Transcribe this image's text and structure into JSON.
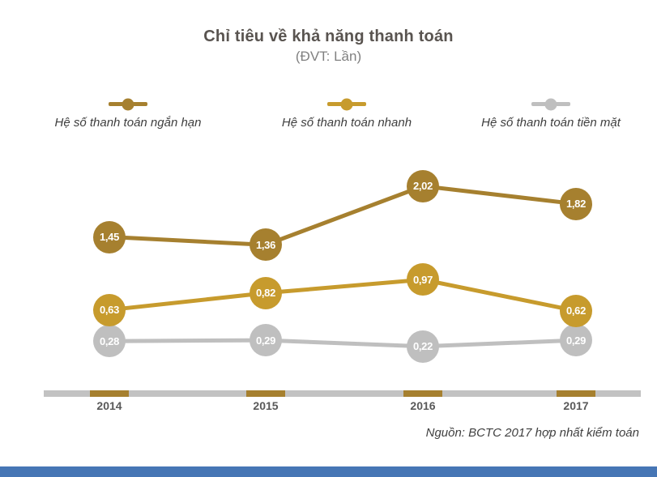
{
  "title": "Chỉ tiêu về khả năng thanh toán",
  "subtitle": "(ĐVT: Lần)",
  "source_note": "Nguồn: BCTC 2017 hợp nhất kiểm toán",
  "colors": {
    "series_short_term": "#A6802F",
    "series_quick": "#C79B2D",
    "series_cash": "#BFBFBF",
    "axis_bar": "#C2C2C2",
    "axis_tick": "#A6802F",
    "value_text": "#FFFFFF",
    "title_text": "#595450",
    "subtitle_text": "#808080",
    "legend_text": "#3E3E3E",
    "year_text": "#595959",
    "footer_bar": "#4676B5"
  },
  "chart_data": {
    "type": "line",
    "title": "Chỉ tiêu về khả năng thanh toán",
    "unit_label": "(ĐVT: Lần)",
    "categories": [
      "2014",
      "2015",
      "2016",
      "2017"
    ],
    "series": [
      {
        "name": "Hệ số thanh toán ngắn hạn",
        "color": "#A6802F",
        "values": [
          1.45,
          1.36,
          2.02,
          1.82
        ]
      },
      {
        "name": "Hệ số thanh toán nhanh",
        "color": "#C79B2D",
        "values": [
          0.63,
          0.82,
          0.97,
          0.62
        ]
      },
      {
        "name": "Hệ số thanh toán tiền mặt",
        "color": "#BFBFBF",
        "values": [
          0.28,
          0.29,
          0.22,
          0.29
        ]
      }
    ],
    "data_labels": "on",
    "value_format": "comma_decimal",
    "legend_position": "top",
    "grid": "off",
    "xlabel": "",
    "ylabel": ""
  }
}
